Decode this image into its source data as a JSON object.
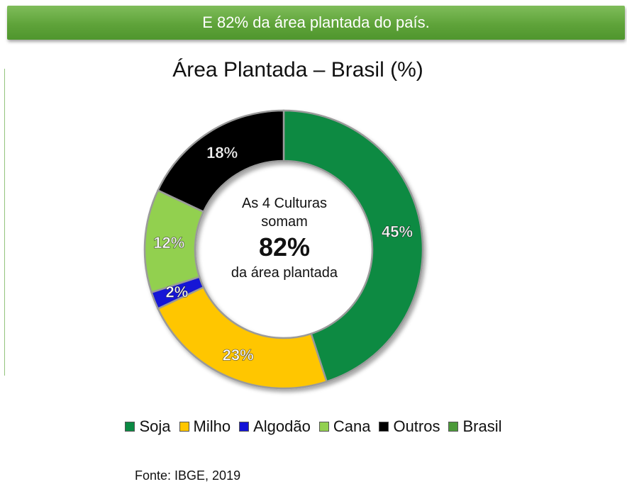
{
  "banner": {
    "text": "E 82% da área plantada do país."
  },
  "center": {
    "line1": "As 4 Culturas",
    "line2": "somam",
    "highlight": "82%",
    "line3": "da área plantada"
  },
  "source": "Fonte: IBGE, 2019",
  "chart_data": {
    "type": "pie",
    "title": "Área Plantada – Brasil (%)",
    "donut": true,
    "categories": [
      "Soja",
      "Milho",
      "Algodão",
      "Cana",
      "Outros"
    ],
    "values": [
      45,
      23,
      2,
      12,
      18
    ],
    "data_labels": [
      "45%",
      "23%",
      "2%",
      "12%",
      "18%"
    ],
    "colors": [
      "#0b8a43",
      "#ffc600",
      "#1212d6",
      "#92d050",
      "#000000"
    ],
    "legend": {
      "placement": "bottom",
      "entries": [
        {
          "label": "Soja",
          "color": "#0b8a43"
        },
        {
          "label": "Milho",
          "color": "#ffc600"
        },
        {
          "label": "Algodão",
          "color": "#1212d6"
        },
        {
          "label": "Cana",
          "color": "#92d050"
        },
        {
          "label": "Outros",
          "color": "#000000"
        },
        {
          "label": "Brasil",
          "color": "#4c9a3a"
        }
      ]
    }
  }
}
